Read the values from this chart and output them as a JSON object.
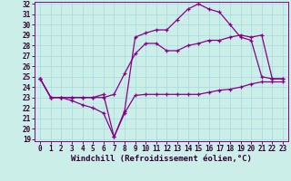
{
  "xlabel": "Windchill (Refroidissement éolien,°C)",
  "bg_color": "#cceee8",
  "grid_color": "#aadddd",
  "line_color": "#880088",
  "xmin": 0,
  "xmax": 23,
  "ymin": 19,
  "ymax": 32,
  "yticks": [
    19,
    20,
    21,
    22,
    23,
    24,
    25,
    26,
    27,
    28,
    29,
    30,
    31,
    32
  ],
  "xticks": [
    0,
    1,
    2,
    3,
    4,
    5,
    6,
    7,
    8,
    9,
    10,
    11,
    12,
    13,
    14,
    15,
    16,
    17,
    18,
    19,
    20,
    21,
    22,
    23
  ],
  "line1_x": [
    0,
    1,
    2,
    3,
    4,
    5,
    6,
    7,
    8,
    9,
    10,
    11,
    12,
    13,
    14,
    15,
    16,
    17,
    18,
    19,
    20,
    21,
    22,
    23
  ],
  "line1_y": [
    24.8,
    23.0,
    23.0,
    22.7,
    22.3,
    22.0,
    21.5,
    19.2,
    21.5,
    23.2,
    23.3,
    23.3,
    23.3,
    23.3,
    23.3,
    23.3,
    23.5,
    23.7,
    23.8,
    24.0,
    24.3,
    24.5,
    24.5,
    24.5
  ],
  "line2_x": [
    0,
    1,
    2,
    3,
    4,
    5,
    6,
    7,
    8,
    9,
    10,
    11,
    12,
    13,
    14,
    15,
    16,
    17,
    18,
    19,
    20,
    21,
    22,
    23
  ],
  "line2_y": [
    24.8,
    23.0,
    23.0,
    23.0,
    23.0,
    23.0,
    23.0,
    23.3,
    25.3,
    27.2,
    28.2,
    28.2,
    27.5,
    27.5,
    28.0,
    28.2,
    28.5,
    28.5,
    28.8,
    29.0,
    28.8,
    29.0,
    24.8,
    24.8
  ],
  "line3_x": [
    0,
    1,
    2,
    3,
    4,
    5,
    6,
    7,
    8,
    9,
    10,
    11,
    12,
    13,
    14,
    15,
    16,
    17,
    18,
    19,
    20,
    21,
    22,
    23
  ],
  "line3_y": [
    24.8,
    23.0,
    23.0,
    23.0,
    23.0,
    23.0,
    23.3,
    19.2,
    21.7,
    28.8,
    29.2,
    29.5,
    29.5,
    30.5,
    31.5,
    32.0,
    31.5,
    31.2,
    30.0,
    28.8,
    28.5,
    25.0,
    24.8,
    24.8
  ],
  "marker": "+",
  "markersize": 3.5,
  "linewidth": 0.9,
  "fontsize_tick": 5.5,
  "fontsize_xlabel": 6.5
}
